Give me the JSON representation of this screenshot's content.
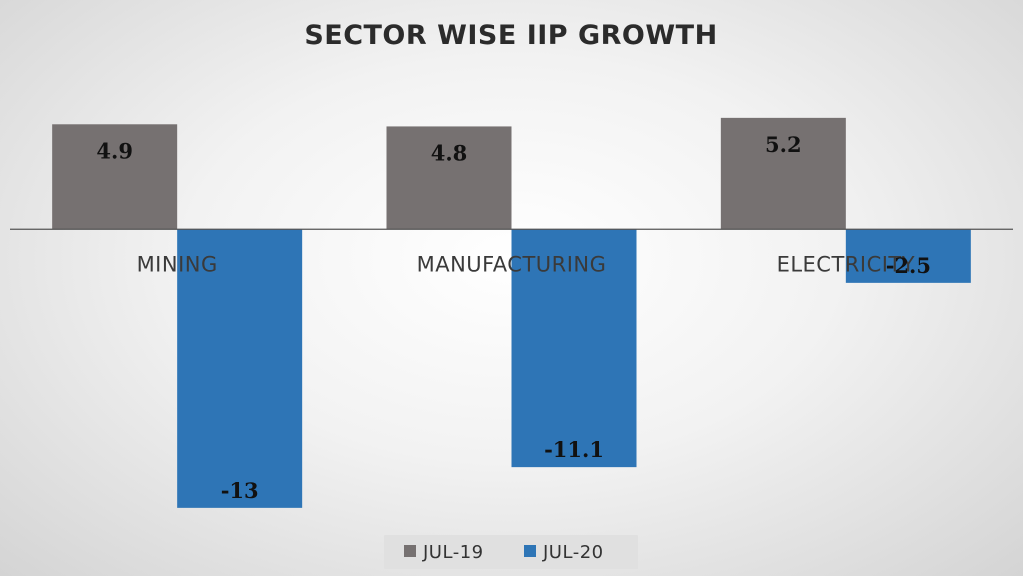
{
  "chart_data": {
    "type": "bar",
    "title": "SECTOR WISE IIP GROWTH",
    "categories": [
      "MINING",
      "MANUFACTURING",
      "ELECTRICITY"
    ],
    "series": [
      {
        "name": "JUL-19",
        "values": [
          4.9,
          4.8,
          5.2
        ],
        "color": "#767171"
      },
      {
        "name": "JUL-20",
        "values": [
          -13,
          -11.1,
          -2.5
        ],
        "color": "#2e75b6"
      }
    ],
    "ylim": [
      -15.2,
      6.5
    ],
    "grid": false,
    "legend": "bottom"
  }
}
